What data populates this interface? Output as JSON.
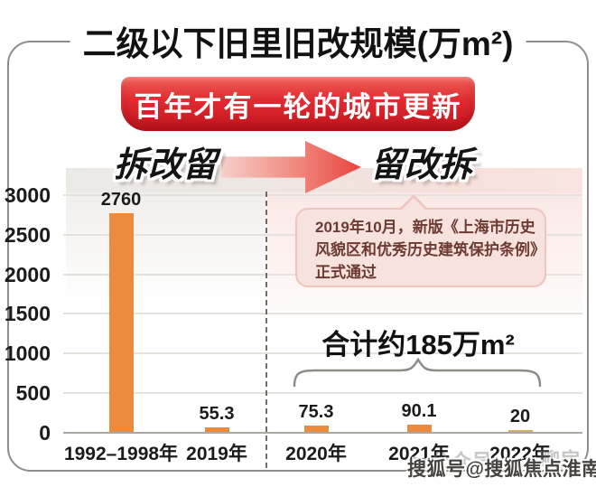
{
  "title": "二级以下旧里旧改规模(万m²)",
  "banner": {
    "label": "百年才有一轮的城市更新",
    "bg_color": "#d71e28"
  },
  "transition": {
    "from": "拆改留",
    "to": "留改拆"
  },
  "callout": {
    "line1": "2019年10月，新版《上海市历史",
    "line2": "风貌区和优秀历史建筑保护条例》",
    "line3": "正式通过"
  },
  "total_label": "合计约185万m²",
  "watermarks": {
    "primary": "搜狐号@搜狐焦点淮南站",
    "faint_left": "公众号",
    "faint_right": "聊房"
  },
  "colors": {
    "bar_orange": "#ec8a3d",
    "bar_2022_tan": "#d4ac6e",
    "banner_red": "#d71e28",
    "arrow_red": "#e8443f",
    "bubble_bg": "#f8e2de",
    "bubble_border": "#efc5bf",
    "bubble_text": "#6d3a33"
  },
  "chart_data": {
    "type": "bar",
    "title": "二级以下旧里旧改规模(万m²)",
    "categories": [
      "1992–1998年",
      "2019年",
      "2020年",
      "2021年",
      "2022年"
    ],
    "values": [
      2760,
      55.3,
      75.3,
      90.1,
      20
    ],
    "value_labels": [
      "2760",
      "55.3",
      "75.3",
      "90.1",
      "20"
    ],
    "bar_colors": [
      "#ec8a3d",
      "#ec8a3d",
      "#ec8a3d",
      "#ec8a3d",
      "#d4ac6e"
    ],
    "xlabel": "",
    "ylabel": "",
    "ylim": [
      0,
      3000
    ],
    "yticks": [
      0,
      500,
      1000,
      1500,
      2000,
      2500,
      3000
    ],
    "grid": true,
    "legend": false,
    "annotations": [
      "百年才有一轮的城市更新",
      "拆改留 → 留改拆",
      "2019年10月，新版《上海市历史风貌区和优秀历史建筑保护条例》正式通过",
      "合计约185万m² (2020年–2022年)"
    ]
  }
}
